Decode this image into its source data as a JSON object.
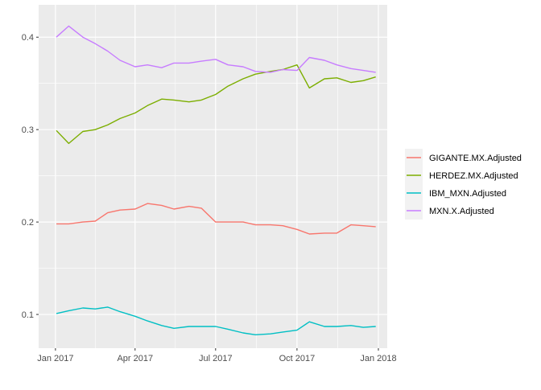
{
  "chart_data": {
    "type": "line",
    "title": "",
    "xlabel": "",
    "ylabel": "",
    "x_ticks": [
      "Jan 2017",
      "Apr 2017",
      "Jul 2017",
      "Oct 2017",
      "Jan 2018"
    ],
    "x_tick_dates": [
      "2017-01-01",
      "2017-04-01",
      "2017-07-01",
      "2017-10-01",
      "2018-01-01"
    ],
    "xlim": [
      "2016-12-13",
      "2018-01-11"
    ],
    "y_ticks": [
      "0.1",
      "0.2",
      "0.3",
      "0.4"
    ],
    "y_tick_values": [
      0.1,
      0.2,
      0.3,
      0.4
    ],
    "ylim": [
      0.0635,
      0.435
    ],
    "grid": true,
    "legend_position": "right",
    "x": [
      "2017-01-02",
      "2017-01-16",
      "2017-02-01",
      "2017-02-15",
      "2017-03-01",
      "2017-03-15",
      "2017-04-01",
      "2017-04-15",
      "2017-05-01",
      "2017-05-15",
      "2017-06-01",
      "2017-06-15",
      "2017-07-01",
      "2017-07-15",
      "2017-08-01",
      "2017-08-15",
      "2017-09-01",
      "2017-09-15",
      "2017-10-01",
      "2017-10-15",
      "2017-11-01",
      "2017-11-15",
      "2017-12-01",
      "2017-12-15",
      "2017-12-29"
    ],
    "series": [
      {
        "name": "GIGANTE.MX.Adjusted",
        "color": "#F8766D",
        "values": [
          0.198,
          0.198,
          0.2,
          0.201,
          0.21,
          0.213,
          0.214,
          0.22,
          0.218,
          0.214,
          0.217,
          0.215,
          0.2,
          0.2,
          0.2,
          0.197,
          0.197,
          0.196,
          0.192,
          0.187,
          0.188,
          0.188,
          0.197,
          0.196,
          0.195
        ]
      },
      {
        "name": "HERDEZ.MX.Adjusted",
        "color": "#7CAE00",
        "values": [
          0.299,
          0.285,
          0.298,
          0.3,
          0.305,
          0.312,
          0.318,
          0.326,
          0.333,
          0.332,
          0.33,
          0.332,
          0.338,
          0.347,
          0.355,
          0.36,
          0.363,
          0.365,
          0.37,
          0.345,
          0.355,
          0.356,
          0.351,
          0.353,
          0.357
        ]
      },
      {
        "name": "IBM_MXN.Adjusted",
        "color": "#00BFC4",
        "values": [
          0.101,
          0.104,
          0.107,
          0.106,
          0.108,
          0.103,
          0.098,
          0.093,
          0.088,
          0.085,
          0.087,
          0.087,
          0.087,
          0.084,
          0.08,
          0.078,
          0.079,
          0.081,
          0.083,
          0.092,
          0.087,
          0.087,
          0.088,
          0.086,
          0.087
        ]
      },
      {
        "name": "MXN.X.Adjusted",
        "color": "#C77CFF",
        "values": [
          0.4,
          0.412,
          0.4,
          0.393,
          0.385,
          0.375,
          0.368,
          0.37,
          0.367,
          0.372,
          0.372,
          0.374,
          0.376,
          0.37,
          0.368,
          0.363,
          0.362,
          0.365,
          0.364,
          0.378,
          0.375,
          0.37,
          0.366,
          0.364,
          0.362
        ]
      }
    ]
  }
}
